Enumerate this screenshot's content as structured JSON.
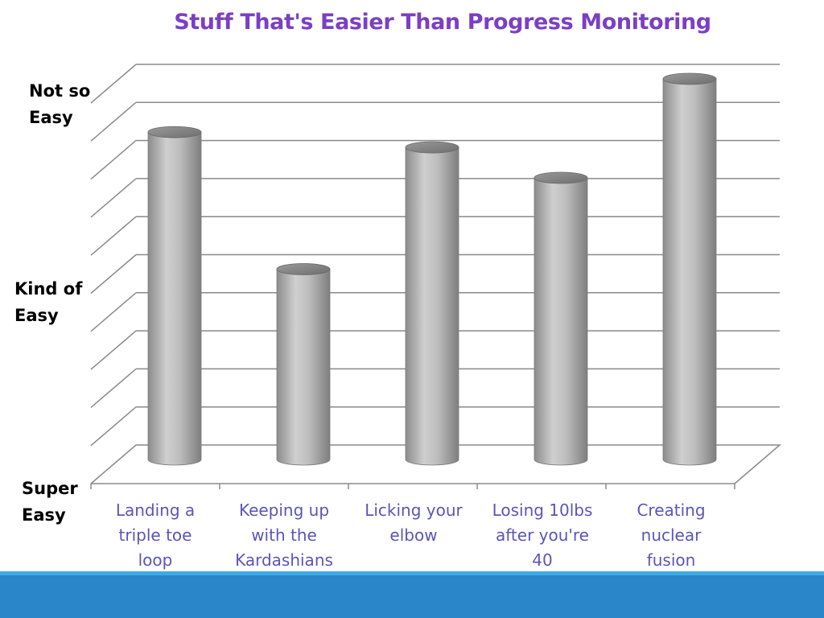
{
  "chart_data": {
    "type": "bar",
    "title": "Stuff That's Easier Than Progress Monitoring",
    "categories": [
      "Landing a triple toe loop",
      "Keeping up with the Kardashians",
      "Licking your elbow",
      "Losing 10lbs after you're 40",
      "Creating nuclear fusion"
    ],
    "category_lines": [
      [
        "Landing a",
        "triple toe",
        "loop"
      ],
      [
        "Keeping up",
        "with the",
        "Kardashians"
      ],
      [
        "Licking your",
        "elbow"
      ],
      [
        "Losing 10lbs",
        "after you're",
        "40"
      ],
      [
        "Creating",
        "nuclear",
        "fusion"
      ]
    ],
    "values": [
      8.6,
      5.0,
      8.2,
      7.4,
      10.0
    ],
    "ylim": [
      0,
      10
    ],
    "grid": true,
    "legend": "none",
    "bar_color": "#b5b5b5",
    "title_color": "#7b3fc4",
    "label_color": "#5b55b8",
    "y_tick_labels": [
      {
        "lines": [
          "Super",
          "Easy"
        ],
        "value": 0
      },
      {
        "lines": [
          "Kind of",
          "Easy"
        ],
        "value": 5
      },
      {
        "lines": [
          "Not so",
          "Easy"
        ],
        "value": 10
      }
    ]
  }
}
